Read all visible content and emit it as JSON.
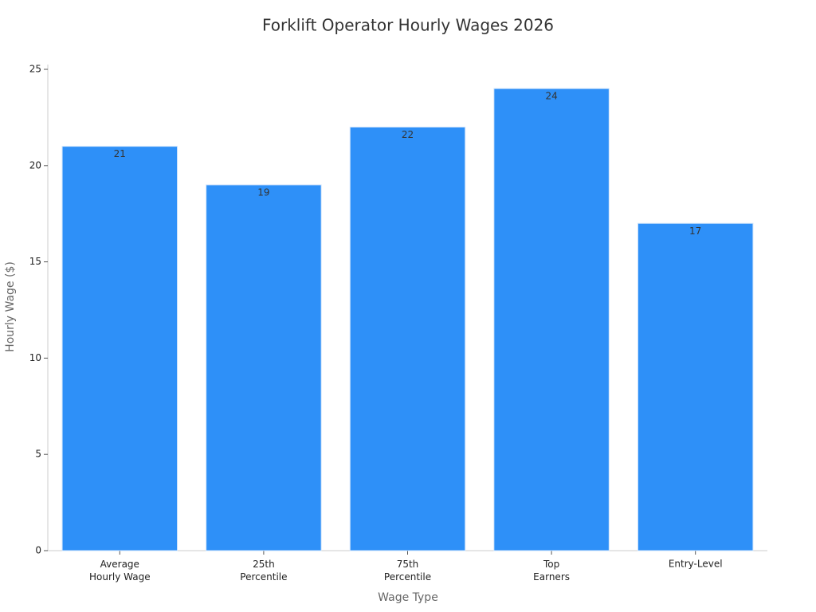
{
  "chart_data": {
    "type": "bar",
    "title": "Forklift Operator Hourly Wages 2026",
    "x_label": "Wage Type",
    "y_label": "Hourly Wage ($)",
    "categories": [
      "Average Hourly Wage",
      "25th Percentile",
      "75th Percentile",
      "Top Earners",
      "Entry-Level"
    ],
    "values": [
      21,
      19,
      22,
      24,
      17
    ],
    "color": "#2e90f8",
    "ylim": [
      0,
      25
    ],
    "yticks": [
      0,
      5,
      10,
      15,
      20,
      25
    ],
    "grid": false
  }
}
